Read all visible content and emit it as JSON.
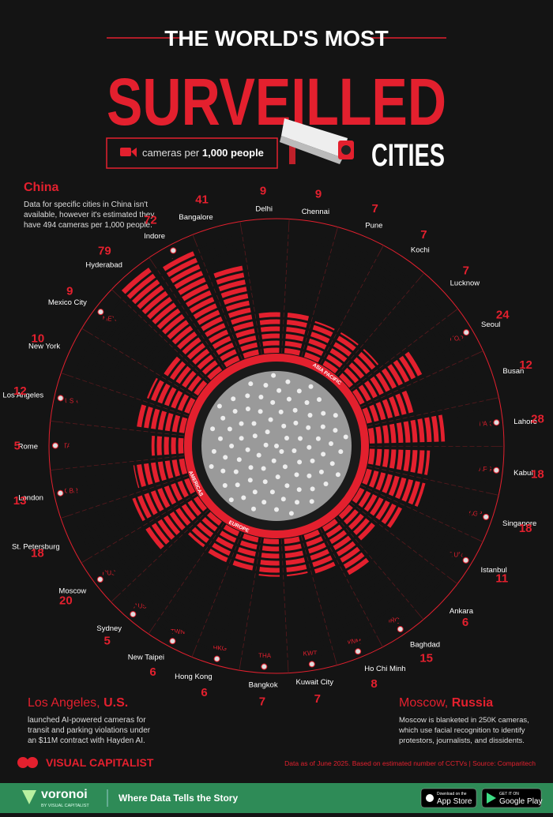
{
  "header": {
    "title_line1": "THE WORLD'S MOST",
    "title_line2": "SURVEILLED",
    "title_line3": "CITIES",
    "legend_prefix": "cameras per",
    "legend_bold": "1,000 people"
  },
  "chart_data": {
    "type": "radial_bar",
    "color": "#e3202e",
    "categories": [
      "Delhi",
      "Chennai",
      "Pune",
      "Kochi",
      "Lucknow",
      "Seoul",
      "Busan",
      "Lahore",
      "Kabul",
      "Singapore",
      "Istanbul",
      "Ankara",
      "Baghdad",
      "Ho Chi Minh",
      "Kuwait City",
      "Bangkok",
      "Hong Kong",
      "New Taipei",
      "Sydney",
      "Moscow",
      "St. Petersburg",
      "London",
      "Rome",
      "Los Angeles",
      "New York",
      "Mexico City",
      "Hyderabad",
      "Indore",
      "Bangalore"
    ],
    "values": [
      9,
      9,
      7,
      7,
      7,
      24,
      12,
      28,
      18,
      18,
      11,
      6,
      15,
      8,
      7,
      7,
      6,
      6,
      5,
      20,
      18,
      13,
      5,
      12,
      10,
      9,
      79,
      72,
      41
    ],
    "country_labels": [
      null,
      null,
      null,
      null,
      null,
      "KOR",
      null,
      "PAK",
      "AFG",
      "SGP",
      "TUR",
      null,
      "IRQ",
      "VNM",
      "KWT",
      "THA",
      "HKG",
      "TWN",
      "AUS",
      "RUS",
      null,
      "GBR",
      "ITA",
      "USA",
      null,
      "MEX",
      null,
      "India",
      null
    ],
    "regions": [
      "ASIA PACIFIC",
      "EUROPE",
      "AMERICAS"
    ]
  },
  "notes": {
    "china": {
      "title": "China",
      "lines": [
        "Data for specific cities in China isn't",
        "available, however it's estimated they",
        "have 494 cameras per 1,000 people."
      ]
    },
    "los_angeles": {
      "title": "Los Angeles,",
      "country": "U.S.",
      "lines": [
        "launched AI-powered cameras for",
        "transit and parking violations under",
        "an $11M contract with Hayden AI."
      ]
    },
    "moscow": {
      "title": "Moscow,",
      "country": "Russia",
      "lines": [
        "Moscow is blanketed in 250K cameras,",
        "which use facial recognition to identify",
        "protestors, journalists, and dissidents."
      ]
    }
  },
  "footer": {
    "brand": "VISUAL CAPITALIST",
    "source": "Data as of June 2025. Based on estimated number of CCTVs | Source: Comparitech"
  },
  "bottom_bar": {
    "logo": "voronoi",
    "logo_sub": "BY VISUAL CAPITALIST",
    "tagline": "Where Data Tells the Story",
    "app_store_top": "Download on the",
    "app_store": "App Store",
    "google_top": "GET IT ON",
    "google": "Google Play"
  }
}
